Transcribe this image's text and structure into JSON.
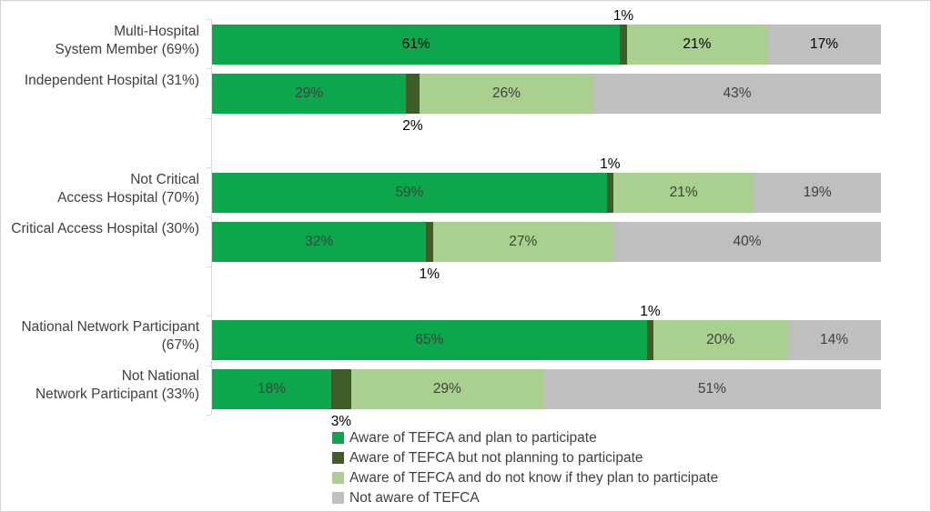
{
  "colors": {
    "series_green": "#0CA64D",
    "series_dark_green": "#3F5D28",
    "series_light_green": "#A9D08E",
    "series_gray": "#BFBFBF",
    "axis_line": "#D9D9D9",
    "label_dark": "#404040",
    "label_black": "#000000",
    "canvas_border": "#D4D4D4",
    "background": "#FFFFFF"
  },
  "chart_data": {
    "type": "bar",
    "orientation": "horizontal",
    "stacked": true,
    "unit": "%",
    "x_range": [
      0,
      100
    ],
    "grid": false,
    "legend_position": "bottom",
    "title": "",
    "categories": [
      "Multi-Hospital System Member (69%)",
      "Independent Hospital (31%)",
      "Not Critical Access Hospital (70%)",
      "Critical Access Hospital (30%)",
      "National Network Participant (67%)",
      "Not National Network Participant (33%)"
    ],
    "series": [
      {
        "name": "Aware of TEFCA and plan to participate",
        "color": "#0CA64D",
        "values": [
          61,
          29,
          59,
          32,
          65,
          18
        ]
      },
      {
        "name": "Aware of TEFCA but not planning to participate",
        "color": "#3F5D28",
        "values": [
          1,
          2,
          1,
          1,
          1,
          3
        ]
      },
      {
        "name": "Aware of TEFCA and do not know if they plan to participate",
        "color": "#A9D08E",
        "values": [
          21,
          26,
          21,
          27,
          20,
          29
        ]
      },
      {
        "name": "Not aware of TEFCA",
        "color": "#BFBFBF",
        "values": [
          17,
          43,
          19,
          40,
          14,
          51
        ]
      }
    ],
    "groups": [
      {
        "label_lines": [
          "Multi-Hospital",
          "System Member (69%)"
        ],
        "values": [
          61,
          1,
          21,
          17
        ],
        "segment_labels": [
          "61%",
          "1%",
          "21%",
          "17%"
        ],
        "small_label_placement": "above",
        "inside_label_color": "#000000"
      },
      {
        "label_lines": [
          "Independent Hospital (31%)"
        ],
        "values": [
          29,
          2,
          26,
          43
        ],
        "segment_labels": [
          "29%",
          "2%",
          "26%",
          "43%"
        ],
        "small_label_placement": "below",
        "inside_label_color": "#404040"
      },
      {
        "label_lines": [
          "Not Critical",
          "Access Hospital (70%)"
        ],
        "values": [
          59,
          1,
          21,
          19
        ],
        "segment_labels": [
          "59%",
          "1%",
          "21%",
          "19%"
        ],
        "small_label_placement": "above",
        "inside_label_color": "#404040"
      },
      {
        "label_lines": [
          "Critical Access Hospital (30%)"
        ],
        "values": [
          32,
          1,
          27,
          40
        ],
        "segment_labels": [
          "32%",
          "1%",
          "27%",
          "40%"
        ],
        "small_label_placement": "below",
        "inside_label_color": "#404040"
      },
      {
        "label_lines": [
          "National Network Participant",
          "(67%)"
        ],
        "values": [
          65,
          1,
          20,
          14
        ],
        "segment_labels": [
          "65%",
          "1%",
          "20%",
          "14%"
        ],
        "small_label_placement": "above",
        "inside_label_color": "#404040"
      },
      {
        "label_lines": [
          "Not National",
          "Network Participant (33%)"
        ],
        "values": [
          18,
          3,
          29,
          51
        ],
        "segment_labels": [
          "18%",
          "3%",
          "29%",
          "51%"
        ],
        "small_label_placement": "below",
        "inside_label_color": "#404040"
      }
    ]
  }
}
